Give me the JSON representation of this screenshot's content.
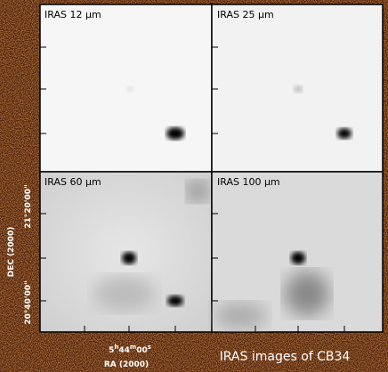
{
  "panels": [
    {
      "label": "IRAS 12 μm"
    },
    {
      "label": "IRAS 25 μm"
    },
    {
      "label": "IRAS 60 μm"
    },
    {
      "label": "IRAS 100 μm"
    }
  ],
  "axes": {
    "y_label": "DEC (2000)",
    "y_ticks": [
      "21°20'00\"",
      "20°40'00\""
    ],
    "x_label": "RA (2000)",
    "x_tick_parts": [
      "5",
      "h",
      "44",
      "m",
      "00",
      "s"
    ]
  },
  "caption": "IRAS images of CB34"
}
